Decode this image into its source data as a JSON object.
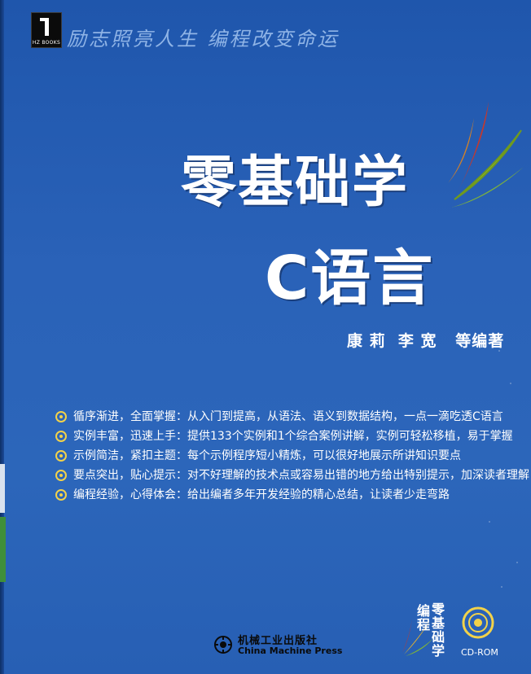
{
  "cover": {
    "publisher_logo_text": "HZ BOOKS",
    "slogan": "励志照亮人生  编程改变命运",
    "title_line1": "零基础学",
    "title_line2": "C语言",
    "authors": "康 莉  李 宽   等编著",
    "features": [
      "循序渐进，全面掌握：从入门到提高，从语法、语义到数据结构，一点一滴吃透C语言",
      "实例丰富，迅速上手：提供133个实例和1个综合案例讲解，实例可轻松移植，易于掌握",
      "示例简洁，紧扣主题：每个示例程序短小精炼，可以很好地展示所讲知识要点",
      "要点突出，贴心提示：对不好理解的技术点或容易出错的地方给出特别提示，加深读者理解",
      "编程经验，心得体会：给出编者多年开发经验的精心总结，让读者少走弯路"
    ],
    "publisher_name_cn": "机械工业出版社",
    "publisher_name_en": "China Machine Press",
    "series_logo_col1": "编程",
    "series_logo_col2": "零基础学",
    "cd_label": "CD-ROM"
  },
  "colors": {
    "background": "#2a62b8",
    "bullet": "#f2d24a",
    "slogan": "#8fb4e6"
  }
}
